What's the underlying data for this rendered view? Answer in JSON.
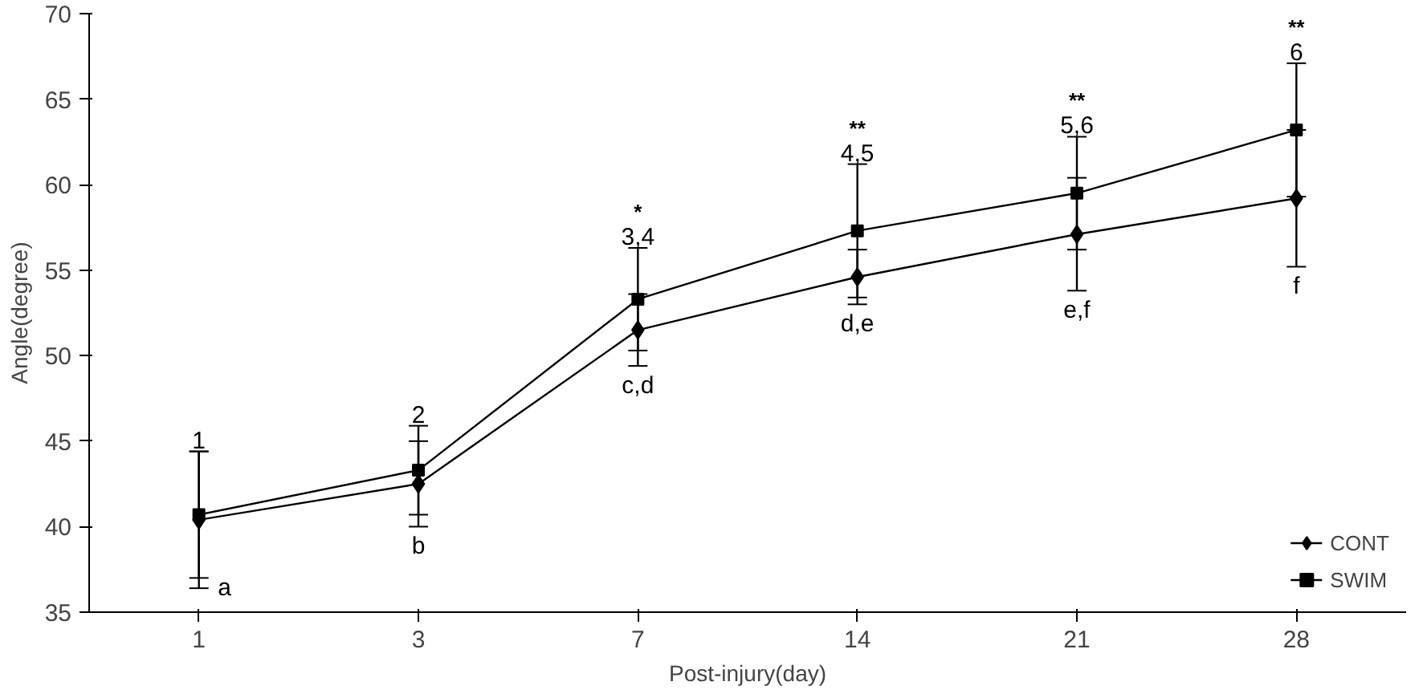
{
  "chart_data": {
    "type": "line",
    "xlabel": "Post-injury(day)",
    "ylabel": "Angle(degree)",
    "categories": [
      "1",
      "3",
      "7",
      "14",
      "21",
      "28"
    ],
    "series": [
      {
        "name": "CONT",
        "color": "#000000",
        "marker": "diamond",
        "values": [
          40.4,
          42.5,
          51.5,
          54.6,
          57.1,
          59.2
        ],
        "errors": [
          4.0,
          2.5,
          2.1,
          1.6,
          3.3,
          4.0
        ]
      },
      {
        "name": "SWIM",
        "color": "#000000",
        "marker": "square",
        "values": [
          40.7,
          43.3,
          53.3,
          57.3,
          59.5,
          63.2
        ],
        "errors": [
          3.7,
          2.6,
          3.0,
          3.9,
          3.3,
          3.9
        ]
      }
    ],
    "ylim": [
      35,
      70
    ],
    "yticks": [
      35,
      40,
      45,
      50,
      55,
      60,
      65,
      70
    ],
    "grid": false,
    "legend": "bottom right",
    "line_style": "solid",
    "annotations": [
      "1",
      "a",
      "2",
      "b",
      "*",
      "3,4",
      "c,d",
      "**",
      "4,5",
      "d,e",
      "**",
      "5,6",
      "e,f",
      "**",
      "6",
      "f"
    ]
  }
}
